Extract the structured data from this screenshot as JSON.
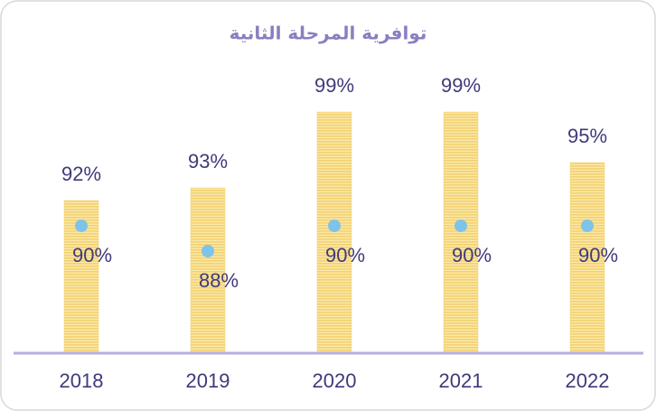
{
  "chart_data": {
    "type": "bar",
    "title": "توافرية المرحلة الثانية",
    "categories": [
      "2018",
      "2019",
      "2020",
      "2021",
      "2022"
    ],
    "series": [
      {
        "color": "#f2d172",
        "values": [
          92,
          93,
          99,
          99,
          95
        ],
        "value_labels": [
          "92%",
          "93%",
          "99%",
          "99%",
          "95%"
        ]
      },
      {
        "color": "#7ec3ea",
        "marker": "dot",
        "values": [
          90,
          88,
          90,
          90,
          90
        ],
        "value_labels": [
          "90%",
          "88%",
          "90%",
          "90%",
          "90%"
        ]
      }
    ],
    "ylim": [
      80,
      105
    ]
  }
}
